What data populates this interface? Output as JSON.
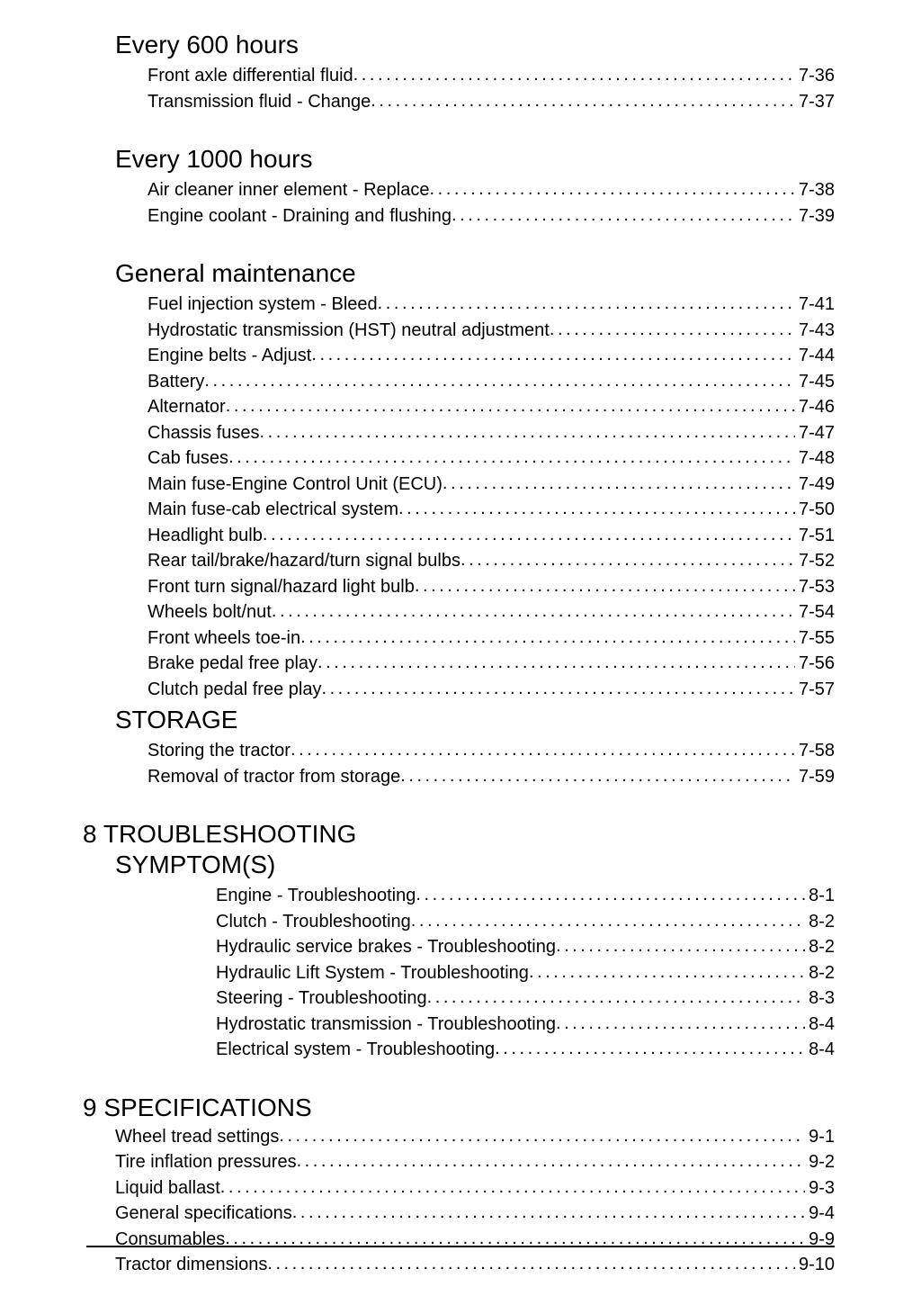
{
  "sections": [
    {
      "heading": "Every 600 hours",
      "heading_class": "section-heading top-gap",
      "block_class": "section-block",
      "items": [
        {
          "label": "Front axle differential fluid",
          "page": "7-36",
          "indent": "indent1"
        },
        {
          "label": "Transmission fluid - Change",
          "page": "7-37",
          "indent": "indent1"
        }
      ]
    },
    {
      "heading": "Every 1000 hours",
      "heading_class": "section-heading",
      "block_class": "section-block",
      "items": [
        {
          "label": "Air cleaner inner element - Replace",
          "page": "7-38",
          "indent": "indent1"
        },
        {
          "label": "Engine coolant - Draining and flushing",
          "page": "7-39",
          "indent": "indent1"
        }
      ]
    },
    {
      "heading": "General maintenance",
      "heading_class": "section-heading",
      "block_class": "section-block tight",
      "items": [
        {
          "label": "Fuel injection system - Bleed",
          "page": "7-41",
          "indent": "indent1"
        },
        {
          "label": "Hydrostatic transmission (HST) neutral adjustment",
          "page": "7-43",
          "indent": "indent1"
        },
        {
          "label": "Engine belts - Adjust",
          "page": "7-44",
          "indent": "indent1"
        },
        {
          "label": "Battery",
          "page": "7-45",
          "indent": "indent1"
        },
        {
          "label": "Alternator",
          "page": "7-46",
          "indent": "indent1"
        },
        {
          "label": "Chassis fuses",
          "page": "7-47",
          "indent": "indent1"
        },
        {
          "label": "Cab fuses",
          "page": "7-48",
          "indent": "indent1"
        },
        {
          "label": "Main fuse-Engine Control Unit (ECU)",
          "page": "7-49",
          "indent": "indent1"
        },
        {
          "label": "Main fuse-cab electrical system ",
          "page": "7-50",
          "indent": "indent1"
        },
        {
          "label": "Headlight bulb",
          "page": "7-51",
          "indent": "indent1"
        },
        {
          "label": "Rear tail/brake/hazard/turn signal bulbs",
          "page": "7-52",
          "indent": "indent1"
        },
        {
          "label": "Front turn signal/hazard light bulb",
          "page": "7-53",
          "indent": "indent1"
        },
        {
          "label": "Wheels bolt/nut",
          "page": "7-54",
          "indent": "indent1"
        },
        {
          "label": "Front wheels toe-in",
          "page": "7-55",
          "indent": "indent1"
        },
        {
          "label": "Brake pedal free play",
          "page": "7-56",
          "indent": "indent1"
        },
        {
          "label": "Clutch pedal free play",
          "page": "7-57",
          "indent": "indent1"
        }
      ]
    },
    {
      "heading": "STORAGE",
      "heading_class": "section-heading",
      "block_class": "section-block",
      "items": [
        {
          "label": "Storing the tractor",
          "page": "7-58",
          "indent": "indent1"
        },
        {
          "label": "Removal of tractor from storage ",
          "page": "7-59",
          "indent": "indent1"
        }
      ]
    }
  ],
  "chapter8_heading": "8 TROUBLESHOOTING",
  "symptom_heading": "SYMPTOM(S)",
  "symptom_items": [
    {
      "label": "Engine - Troubleshooting",
      "page": "8-1",
      "indent": "indent2"
    },
    {
      "label": "Clutch - Troubleshooting",
      "page": "8-2",
      "indent": "indent2"
    },
    {
      "label": "Hydraulic service brakes - Troubleshooting",
      "page": "8-2",
      "indent": "indent2"
    },
    {
      "label": "Hydraulic Lift System - Troubleshooting",
      "page": "8-2",
      "indent": "indent2"
    },
    {
      "label": "Steering - Troubleshooting",
      "page": "8-3",
      "indent": "indent2"
    },
    {
      "label": "Hydrostatic transmission - Troubleshooting",
      "page": "8-4",
      "indent": "indent2"
    },
    {
      "label": "Electrical system - Troubleshooting",
      "page": "8-4",
      "indent": "indent2"
    }
  ],
  "chapter9_heading": "9 SPECIFICATIONS",
  "spec_items": [
    {
      "label": "Wheel tread settings",
      "page": "9-1",
      "indent": "indent1"
    },
    {
      "label": "Tire inflation pressures",
      "page": "9-2",
      "indent": "indent1"
    },
    {
      "label": "Liquid ballast",
      "page": "9-3",
      "indent": "indent1"
    },
    {
      "label": "General specifications",
      "page": "9-4",
      "indent": "indent1"
    },
    {
      "label": "Consumables",
      "page": "9-9",
      "indent": "indent1"
    },
    {
      "label": "Tractor dimensions",
      "page": "9-10",
      "indent": "indent1"
    }
  ]
}
